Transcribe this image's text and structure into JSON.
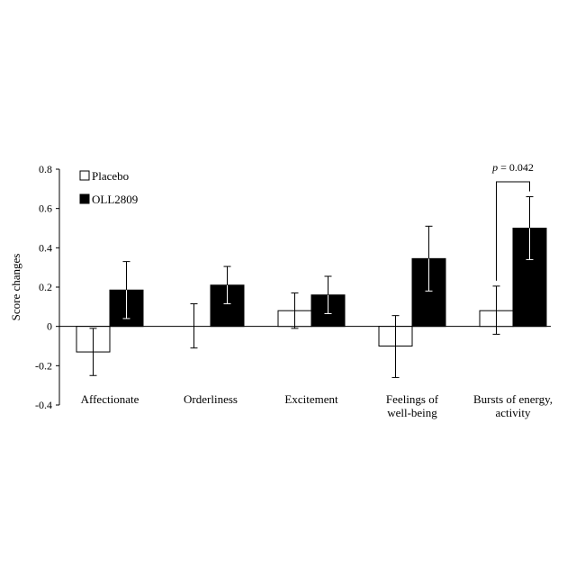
{
  "chart_data": {
    "type": "bar",
    "ylabel": "Score changes",
    "ylim": [
      -0.4,
      0.8
    ],
    "yticks": [
      "0.8",
      "0.6",
      "0.4",
      "0.2",
      "0",
      "-0.2",
      "-0.4"
    ],
    "categories": [
      [
        "Affectionate"
      ],
      [
        "Orderliness"
      ],
      [
        "Excitement"
      ],
      [
        "Feelings of",
        "well-being"
      ],
      [
        "Bursts of energy,",
        "activity"
      ]
    ],
    "series": [
      {
        "name": "Placebo",
        "color": "#ffffff",
        "values": [
          -0.13,
          0.0,
          0.08,
          -0.1,
          0.08
        ],
        "err_low": [
          -0.25,
          -0.11,
          -0.01,
          -0.26,
          -0.04
        ],
        "err_high": [
          -0.01,
          0.115,
          0.17,
          0.055,
          0.205
        ]
      },
      {
        "name": "OLL2809",
        "color": "#000000",
        "values": [
          0.185,
          0.21,
          0.16,
          0.345,
          0.5
        ],
        "err_low": [
          0.04,
          0.115,
          0.065,
          0.18,
          0.34
        ],
        "err_high": [
          0.33,
          0.305,
          0.255,
          0.51,
          0.66
        ]
      }
    ],
    "legend": "top-left",
    "annotation": {
      "italic": "p",
      "text": " = 0.042",
      "category": 4
    }
  }
}
